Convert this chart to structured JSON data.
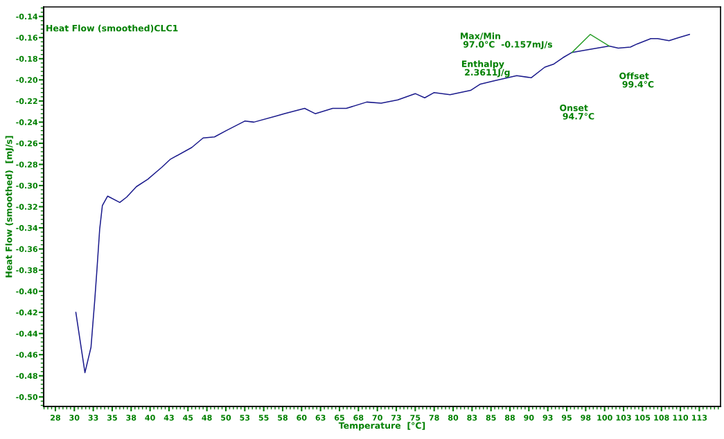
{
  "chart_data": {
    "type": "line",
    "xlabel": "Temperature  [°C]",
    "ylabel": "Heat Flow (smoothed)  [mJ/s]",
    "annotations": [
      "Heat Flow (smoothed)CLC1",
      "Max/Min\n 97.0°C  -0.157mJ/s",
      "Enthalpy\n 2.3611J/g",
      "Onset\n 94.7°C",
      "Offset\n 99.4°C"
    ],
    "xlim": [
      25.95,
      115.3
    ],
    "ylim": [
      -0.509,
      -0.131
    ],
    "xticks": [
      {
        "value": 27.5,
        "label": "28"
      },
      {
        "value": 30,
        "label": "30"
      },
      {
        "value": 32.5,
        "label": "33"
      },
      {
        "value": 35,
        "label": "35"
      },
      {
        "value": 37.5,
        "label": "38"
      },
      {
        "value": 40,
        "label": "40"
      },
      {
        "value": 42.5,
        "label": "43"
      },
      {
        "value": 45,
        "label": "45"
      },
      {
        "value": 47.5,
        "label": "48"
      },
      {
        "value": 50,
        "label": "50"
      },
      {
        "value": 52.5,
        "label": "53"
      },
      {
        "value": 55,
        "label": "55"
      },
      {
        "value": 57.5,
        "label": "58"
      },
      {
        "value": 60,
        "label": "60"
      },
      {
        "value": 62.5,
        "label": "63"
      },
      {
        "value": 65,
        "label": "65"
      },
      {
        "value": 67.5,
        "label": "68"
      },
      {
        "value": 70,
        "label": "70"
      },
      {
        "value": 72.5,
        "label": "73"
      },
      {
        "value": 75,
        "label": "75"
      },
      {
        "value": 77.5,
        "label": "78"
      },
      {
        "value": 80,
        "label": "80"
      },
      {
        "value": 82.5,
        "label": "83"
      },
      {
        "value": 85,
        "label": "85"
      },
      {
        "value": 87.5,
        "label": "88"
      },
      {
        "value": 90,
        "label": "90"
      },
      {
        "value": 92.5,
        "label": "93"
      },
      {
        "value": 95,
        "label": "95"
      },
      {
        "value": 97.5,
        "label": "98"
      },
      {
        "value": 100,
        "label": "100"
      },
      {
        "value": 102.5,
        "label": "103"
      },
      {
        "value": 105,
        "label": "105"
      },
      {
        "value": 107.5,
        "label": "108"
      },
      {
        "value": 110,
        "label": "110"
      },
      {
        "value": 112.5,
        "label": "113"
      }
    ],
    "yticks": [
      -0.14,
      -0.16,
      -0.18,
      {
        "value": -0.2,
        "label": "-0.20"
      },
      -0.22,
      -0.24,
      -0.26,
      -0.28,
      {
        "value": -0.3,
        "label": "-0.30"
      },
      -0.32,
      -0.34,
      -0.36,
      -0.38,
      {
        "value": -0.4,
        "label": "-0.40"
      },
      -0.42,
      -0.44,
      -0.46,
      -0.48,
      {
        "value": -0.5,
        "label": "-0.50"
      }
    ],
    "grid": false,
    "legend": false,
    "marker": "none",
    "line_style": "solid",
    "series": [
      {
        "color": "#1a1a8c",
        "x": [
          30.2,
          31.4,
          32.2,
          32.7,
          33.0,
          33.35,
          33.7,
          34.4,
          36.0,
          36.9,
          38.2,
          39.7,
          41.5,
          42.7,
          45.5,
          47.0,
          48.5,
          50.05,
          51.7,
          52.5,
          53.7,
          56.75,
          57.7,
          60.4,
          61.8,
          64.1,
          65.9,
          68.6,
          70.5,
          72.7,
          75.0,
          76.25,
          77.5,
          79.6,
          82.3,
          83.6,
          85.4,
          88.4,
          90.3,
          92.1,
          93.3,
          94.5,
          95.7,
          98.2,
          100.6,
          101.8,
          103.4,
          104.3,
          106.1,
          107.0,
          108.5,
          109.8,
          111.2
        ],
        "values": [
          -0.42,
          -0.477,
          -0.453,
          -0.408,
          -0.378,
          -0.341,
          -0.319,
          -0.31,
          -0.316,
          -0.311,
          -0.301,
          -0.294,
          -0.283,
          -0.275,
          -0.264,
          -0.255,
          -0.254,
          -0.248,
          -0.242,
          -0.239,
          -0.24,
          -0.234,
          -0.232,
          -0.227,
          -0.232,
          -0.227,
          -0.227,
          -0.221,
          -0.222,
          -0.219,
          -0.213,
          -0.217,
          -0.212,
          -0.214,
          -0.21,
          -0.204,
          -0.201,
          -0.196,
          -0.198,
          -0.188,
          -0.185,
          -0.179,
          -0.174,
          -0.171,
          -0.168,
          -0.17,
          -0.169,
          -0.166,
          -0.161,
          -0.161,
          -0.163,
          -0.16,
          -0.157
        ]
      },
      {
        "color": "#2ca02c",
        "x": [
          95.7,
          98.1,
          100.6
        ],
        "values": [
          -0.174,
          -0.157,
          -0.168
        ]
      }
    ]
  }
}
